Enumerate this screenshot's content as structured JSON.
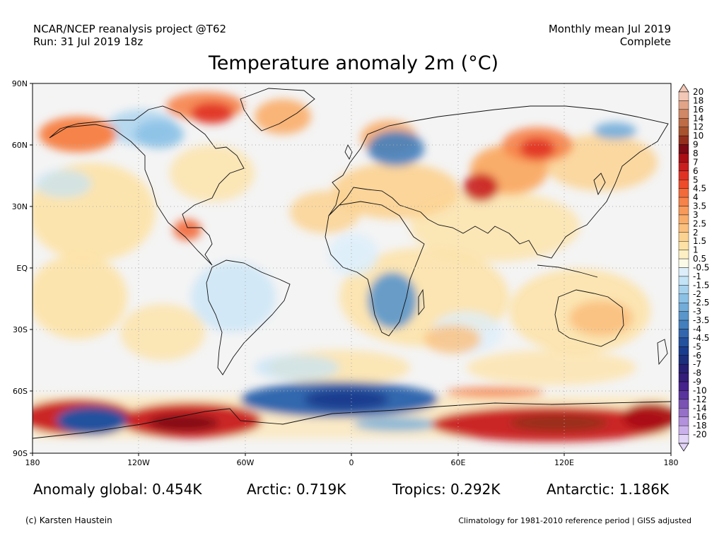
{
  "header": {
    "source_line1": "NCAR/NCEP reanalysis project @T62",
    "source_line2": "Run: 31 Jul 2019 18z",
    "period_line1": "Monthly mean Jul 2019",
    "period_line2": "Complete"
  },
  "title": "Temperature anomaly 2m (°C)",
  "axes": {
    "lat_labels": [
      "90N",
      "60N",
      "30N",
      "EQ",
      "30S",
      "60S",
      "90S"
    ],
    "lon_labels": [
      "180",
      "120W",
      "60W",
      "0",
      "60E",
      "120E",
      "180"
    ]
  },
  "colorbar": {
    "labels": [
      "20",
      "18",
      "16",
      "14",
      "12",
      "10",
      "9",
      "8",
      "7",
      "6",
      "5",
      "4.5",
      "4",
      "3.5",
      "3",
      "2.5",
      "2",
      "1.5",
      "1",
      "0.5",
      "-0.5",
      "-1",
      "-1.5",
      "-2",
      "-2.5",
      "-3",
      "-3.5",
      "-4",
      "-4.5",
      "-5",
      "-6",
      "-7",
      "-8",
      "-9",
      "-10",
      "-12",
      "-14",
      "-16",
      "-18",
      "-20"
    ],
    "colors": [
      "#f2c7b5",
      "#e2a488",
      "#d08866",
      "#bd6c46",
      "#a9522e",
      "#952f1d",
      "#7d0a14",
      "#aa0f14",
      "#c81e1e",
      "#e03224",
      "#ee4b2b",
      "#f26a3a",
      "#f6834a",
      "#f79a5a",
      "#f9ad6a",
      "#fbc07e",
      "#fcd290",
      "#fde2a6",
      "#fef0c4",
      "#fbfae8",
      "#ddeefa",
      "#c3e3f6",
      "#a7d2ee",
      "#8cc1e6",
      "#72acd9",
      "#5a96cb",
      "#447fbd",
      "#3267ae",
      "#23519e",
      "#1a3c8f",
      "#1c2e7c",
      "#261f73",
      "#341c7a",
      "#46228c",
      "#5a349e",
      "#7a52b4",
      "#9670c8",
      "#b391dc",
      "#cbb1ec",
      "#e1d4f7"
    ]
  },
  "stats": {
    "global": "Anomaly global: 0.454K",
    "arctic": "Arctic: 0.719K",
    "tropics": "Tropics: 0.292K",
    "antarctic": "Antarctic: 1.186K"
  },
  "footer": {
    "credit": "(c) Karsten Haustein",
    "note": "Climatology for 1981-2010 reference period | GISS adjusted"
  }
}
